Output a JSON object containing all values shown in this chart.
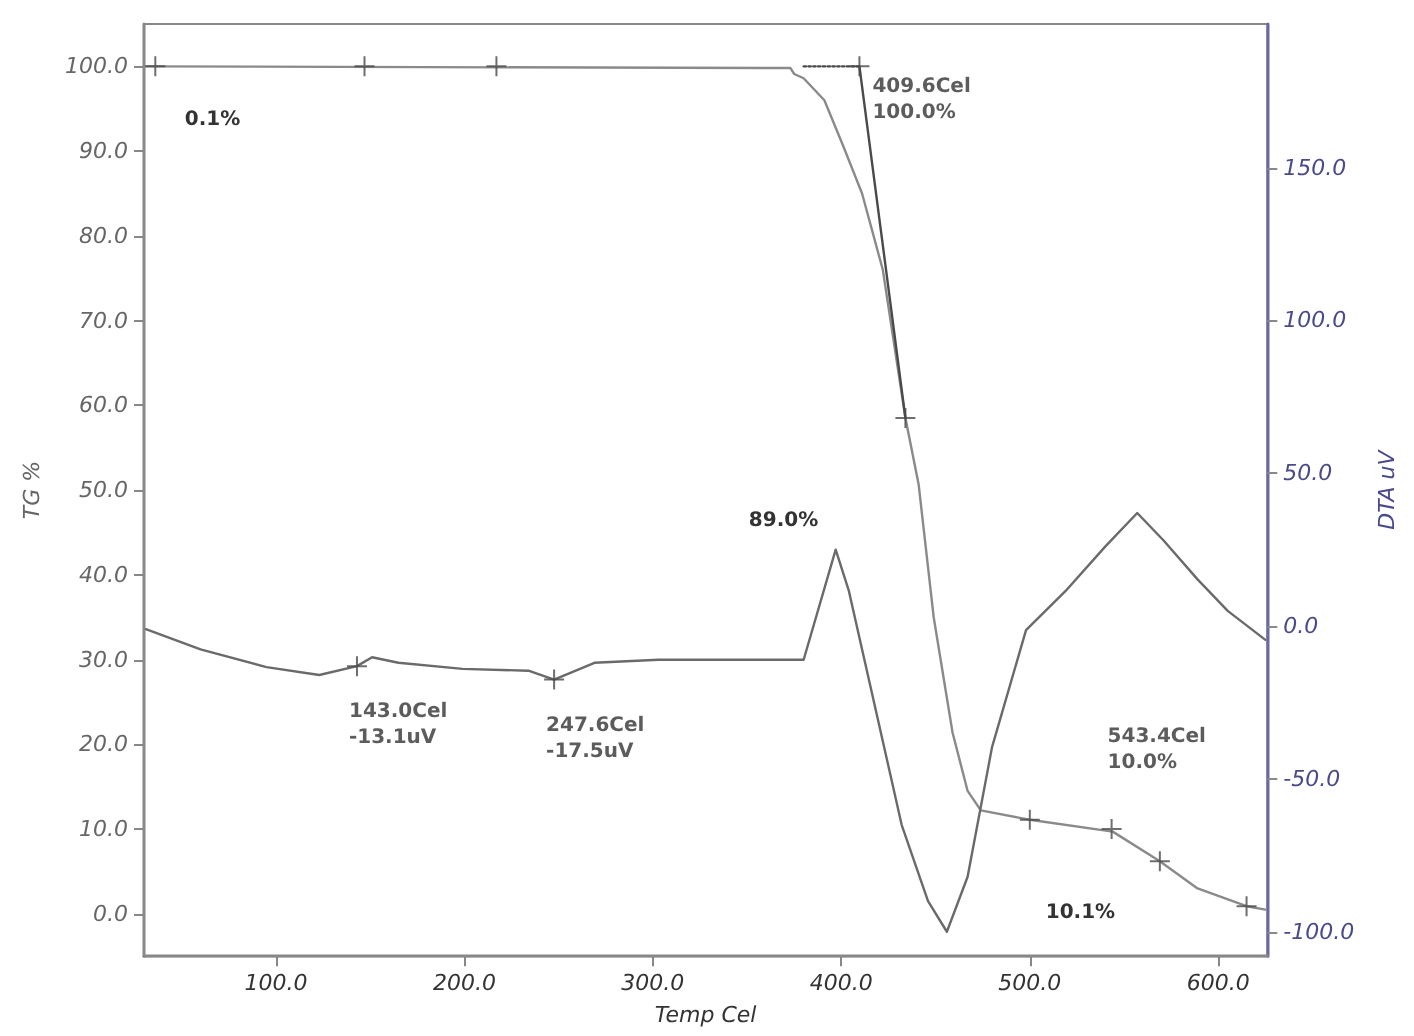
{
  "chart_data": {
    "type": "line",
    "xlabel": "Temp Cel",
    "ylabel": "TG %",
    "y2label": "DTA uV",
    "xlim": [
      30,
      626
    ],
    "xticks": [
      {
        "value": 100,
        "label": "100.0"
      },
      {
        "value": 200,
        "label": "200.0"
      },
      {
        "value": 300,
        "label": "300.0"
      },
      {
        "value": 400,
        "label": "400.0"
      },
      {
        "value": 500,
        "label": "500.0"
      },
      {
        "value": 600,
        "label": "600.0"
      }
    ],
    "ylim": [
      -5,
      105
    ],
    "yticks": [
      {
        "value": 0,
        "label": "0.0"
      },
      {
        "value": 10,
        "label": "10.0"
      },
      {
        "value": 20,
        "label": "20.0"
      },
      {
        "value": 30,
        "label": "30.0"
      },
      {
        "value": 40,
        "label": "40.0"
      },
      {
        "value": 50,
        "label": "50.0"
      },
      {
        "value": 60,
        "label": "60.0"
      },
      {
        "value": 70,
        "label": "70.0"
      },
      {
        "value": 80,
        "label": "80.0"
      },
      {
        "value": 90,
        "label": "90.0"
      },
      {
        "value": 100,
        "label": "100.0"
      }
    ],
    "y2lim": [
      -108,
      197
    ],
    "y2ticks": [
      {
        "value": -100,
        "label": "-100.0"
      },
      {
        "value": -50,
        "label": "-50.0"
      },
      {
        "value": 0,
        "label": "0.0"
      },
      {
        "value": 50,
        "label": "50.0"
      },
      {
        "value": 100,
        "label": "100.0"
      },
      {
        "value": 150,
        "label": "150.0"
      }
    ],
    "grid": false,
    "marker": "none",
    "line_style": "solid",
    "series": [
      {
        "color": "#8a8a8a",
        "x": [
          31,
          373,
          375,
          380,
          391,
          401,
          411,
          422,
          434,
          441,
          449,
          459,
          467,
          474,
          500,
          544,
          569,
          589,
          615,
          625
        ],
        "values": [
          100,
          99.8,
          99.1,
          98.6,
          96,
          90.6,
          85,
          76,
          58.5,
          50.7,
          35,
          21.4,
          14.5,
          12.2,
          11.1,
          9.7,
          6.2,
          3,
          0.9,
          0.5
        ]
      },
      {
        "type": "line",
        "color": "#4a4a4a",
        "line_style": "dotted",
        "x": [
          380,
          409.6
        ],
        "values": [
          100,
          100
        ]
      },
      {
        "type": "line",
        "color": "#4a4a4a",
        "x": [
          409.6,
          434
        ],
        "values": [
          100,
          58.5
        ]
      },
      {
        "axis": "y2",
        "color": "#6a6a6a",
        "x": [
          31,
          60,
          95,
          123,
          143,
          151,
          165,
          199,
          234,
          247.6,
          269,
          303,
          376,
          380,
          397,
          404,
          415,
          432,
          446,
          456,
          467,
          480,
          498,
          519,
          540,
          557,
          571,
          589,
          605,
          625
        ],
        "values": [
          -1,
          -7.6,
          -13.4,
          -16,
          -13.1,
          -10.2,
          -12,
          -14,
          -14.6,
          -17.5,
          -12,
          -11,
          -11,
          -11,
          25,
          11.5,
          -18.5,
          -65,
          -90,
          -100,
          -82,
          -39.5,
          -1.3,
          11.5,
          26,
          37,
          28,
          15.3,
          5,
          -4.5
        ]
      },
      {
        "type": "scatter",
        "marker": "cross",
        "color": "#4a4a4a",
        "x": [
          36,
          147,
          217,
          409.6,
          434,
          500,
          543.4,
          569,
          615
        ],
        "values": [
          100,
          100,
          100,
          100,
          58.5,
          11.1,
          10.0,
          6.2,
          0.9
        ],
        "value_labels": [
          null,
          null,
          null,
          "409.6Cel\n100.0%",
          null,
          null,
          "543.4Cel\n10.0%",
          null,
          null
        ]
      },
      {
        "type": "scatter",
        "axis": "y2",
        "marker": "cross",
        "color": "#4a4a4a",
        "x": [
          143.0,
          247.6
        ],
        "values": [
          -13.1,
          -17.5
        ],
        "value_labels": [
          "143.0Cel\n-13.1uV",
          "247.6Cel\n-17.5uV"
        ]
      }
    ],
    "annotations": [
      "0.1%",
      "89.0%",
      "10.1%"
    ]
  }
}
